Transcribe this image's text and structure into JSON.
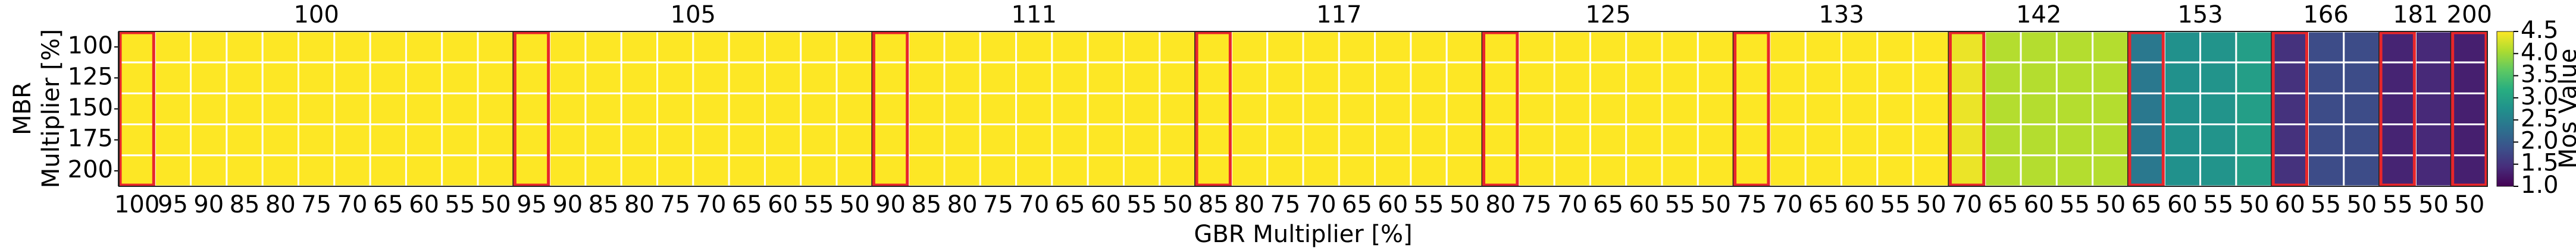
{
  "chart_data": {
    "type": "heatmap",
    "colormap": "viridis",
    "x_label": "GBR Multiplier [%]",
    "y_label": [
      "MBR",
      "Multiplier [%]"
    ],
    "rows": [
      "100",
      "125",
      "150",
      "175",
      "200"
    ],
    "groups": [
      {
        "name": "100",
        "categories": [
          "100",
          "95",
          "90",
          "85",
          "80",
          "75",
          "70",
          "65",
          "60",
          "55",
          "50"
        ],
        "values": [
          [
            4.5,
            4.5,
            4.5,
            4.5,
            4.5,
            4.5,
            4.5,
            4.5,
            4.5,
            4.5,
            4.5
          ],
          [
            4.5,
            4.5,
            4.5,
            4.5,
            4.5,
            4.5,
            4.5,
            4.5,
            4.5,
            4.5,
            4.5
          ],
          [
            4.5,
            4.5,
            4.5,
            4.5,
            4.5,
            4.5,
            4.5,
            4.5,
            4.5,
            4.5,
            4.5
          ],
          [
            4.5,
            4.5,
            4.5,
            4.5,
            4.5,
            4.5,
            4.5,
            4.5,
            4.5,
            4.5,
            4.5
          ],
          [
            4.5,
            4.5,
            4.5,
            4.5,
            4.5,
            4.5,
            4.5,
            4.5,
            4.5,
            4.5,
            4.5
          ]
        ]
      },
      {
        "name": "105",
        "categories": [
          "95",
          "90",
          "85",
          "80",
          "75",
          "70",
          "65",
          "60",
          "55",
          "50"
        ],
        "values": [
          [
            4.5,
            4.5,
            4.5,
            4.5,
            4.5,
            4.5,
            4.5,
            4.5,
            4.5,
            4.5
          ],
          [
            4.5,
            4.5,
            4.5,
            4.5,
            4.5,
            4.5,
            4.5,
            4.5,
            4.5,
            4.5
          ],
          [
            4.5,
            4.5,
            4.5,
            4.5,
            4.5,
            4.5,
            4.5,
            4.5,
            4.5,
            4.5
          ],
          [
            4.5,
            4.5,
            4.5,
            4.5,
            4.5,
            4.5,
            4.5,
            4.5,
            4.5,
            4.5
          ],
          [
            4.5,
            4.5,
            4.5,
            4.5,
            4.5,
            4.5,
            4.5,
            4.5,
            4.5,
            4.5
          ]
        ]
      },
      {
        "name": "111",
        "categories": [
          "90",
          "85",
          "80",
          "75",
          "70",
          "65",
          "60",
          "55",
          "50"
        ],
        "values": [
          [
            4.5,
            4.5,
            4.5,
            4.5,
            4.5,
            4.5,
            4.5,
            4.5,
            4.5
          ],
          [
            4.5,
            4.5,
            4.5,
            4.5,
            4.5,
            4.5,
            4.5,
            4.5,
            4.5
          ],
          [
            4.5,
            4.5,
            4.5,
            4.5,
            4.5,
            4.5,
            4.5,
            4.5,
            4.5
          ],
          [
            4.5,
            4.5,
            4.5,
            4.5,
            4.5,
            4.5,
            4.5,
            4.5,
            4.5
          ],
          [
            4.5,
            4.5,
            4.5,
            4.5,
            4.5,
            4.5,
            4.5,
            4.5,
            4.5
          ]
        ]
      },
      {
        "name": "117",
        "categories": [
          "85",
          "80",
          "75",
          "70",
          "65",
          "60",
          "55",
          "50"
        ],
        "values": [
          [
            4.5,
            4.5,
            4.5,
            4.5,
            4.5,
            4.5,
            4.5,
            4.5
          ],
          [
            4.5,
            4.5,
            4.5,
            4.5,
            4.5,
            4.5,
            4.5,
            4.5
          ],
          [
            4.5,
            4.5,
            4.5,
            4.5,
            4.5,
            4.5,
            4.5,
            4.5
          ],
          [
            4.5,
            4.5,
            4.5,
            4.5,
            4.5,
            4.5,
            4.5,
            4.5
          ],
          [
            4.5,
            4.5,
            4.5,
            4.5,
            4.5,
            4.5,
            4.5,
            4.5
          ]
        ]
      },
      {
        "name": "125",
        "categories": [
          "80",
          "75",
          "70",
          "65",
          "60",
          "55",
          "50"
        ],
        "values": [
          [
            4.5,
            4.5,
            4.5,
            4.5,
            4.5,
            4.5,
            4.5
          ],
          [
            4.5,
            4.5,
            4.5,
            4.5,
            4.5,
            4.5,
            4.5
          ],
          [
            4.5,
            4.5,
            4.5,
            4.5,
            4.5,
            4.5,
            4.5
          ],
          [
            4.5,
            4.5,
            4.5,
            4.5,
            4.5,
            4.5,
            4.5
          ],
          [
            4.5,
            4.5,
            4.5,
            4.5,
            4.5,
            4.5,
            4.5
          ]
        ]
      },
      {
        "name": "133",
        "categories": [
          "75",
          "70",
          "65",
          "60",
          "55",
          "50"
        ],
        "values": [
          [
            4.5,
            4.5,
            4.5,
            4.5,
            4.5,
            4.5
          ],
          [
            4.5,
            4.5,
            4.5,
            4.5,
            4.5,
            4.5
          ],
          [
            4.5,
            4.5,
            4.5,
            4.5,
            4.5,
            4.5
          ],
          [
            4.5,
            4.5,
            4.5,
            4.5,
            4.5,
            4.5
          ],
          [
            4.5,
            4.5,
            4.5,
            4.5,
            4.5,
            4.5
          ]
        ]
      },
      {
        "name": "142",
        "categories": [
          "70",
          "65",
          "60",
          "55",
          "50"
        ],
        "values": [
          [
            4.4,
            4.1,
            4.1,
            4.1,
            4.1
          ],
          [
            4.4,
            4.1,
            4.1,
            4.1,
            4.1
          ],
          [
            4.4,
            4.1,
            4.1,
            4.1,
            4.1
          ],
          [
            4.4,
            4.1,
            4.1,
            4.1,
            4.1
          ],
          [
            4.4,
            4.1,
            4.1,
            4.1,
            4.1
          ]
        ]
      },
      {
        "name": "153",
        "categories": [
          "65",
          "60",
          "55",
          "50"
        ],
        "values": [
          [
            2.4,
            2.75,
            2.8,
            2.95
          ],
          [
            2.4,
            2.75,
            2.8,
            2.95
          ],
          [
            2.4,
            2.75,
            2.8,
            2.95
          ],
          [
            2.4,
            2.75,
            2.8,
            2.95
          ],
          [
            2.4,
            2.75,
            2.8,
            2.95
          ]
        ]
      },
      {
        "name": "166",
        "categories": [
          "60",
          "55",
          "50"
        ],
        "values": [
          [
            1.5,
            1.8,
            1.8
          ],
          [
            1.5,
            1.8,
            1.8
          ],
          [
            1.5,
            1.8,
            1.8
          ],
          [
            1.5,
            1.8,
            1.8
          ],
          [
            1.5,
            1.8,
            1.8
          ]
        ]
      },
      {
        "name": "181",
        "categories": [
          "55",
          "50"
        ],
        "values": [
          [
            1.35,
            1.4
          ],
          [
            1.35,
            1.4
          ],
          [
            1.35,
            1.4
          ],
          [
            1.35,
            1.4
          ],
          [
            1.35,
            1.4
          ]
        ]
      },
      {
        "name": "200",
        "categories": [
          "50"
        ],
        "values": [
          [
            1.3
          ],
          [
            1.3
          ],
          [
            1.3
          ],
          [
            1.3
          ],
          [
            1.3
          ]
        ]
      }
    ],
    "colorbar": {
      "label": "Mos Value",
      "lim": [
        1,
        4.5
      ],
      "ticks": [
        {
          "value": 1,
          "label": "1.0"
        },
        1.5,
        {
          "value": 2,
          "label": "2.0"
        },
        2.5,
        {
          "value": 3,
          "label": "3.0"
        },
        3.5,
        {
          "value": 4,
          "label": "4.0"
        },
        4.5
      ]
    },
    "highlight_color": "#e8262a",
    "grid_color": "#ffffff"
  }
}
